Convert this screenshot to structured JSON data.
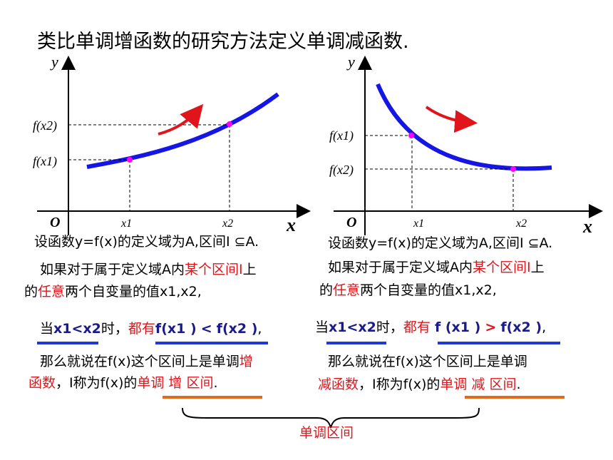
{
  "title": "类比单调增函数的研究方法定义单调减函数.",
  "left_graph": {
    "y_axis": "y",
    "x_axis": "x",
    "origin": "O",
    "x1": "x1",
    "x2": "x2",
    "fx1": "f(x1)",
    "fx2": "f(x2)"
  },
  "right_graph": {
    "y_axis": "y",
    "x_axis": "x",
    "origin": "O",
    "x1": "x1",
    "x2": "x2",
    "fx1": "f(x1)",
    "fx2": "f(x2)"
  },
  "left_text": {
    "line1": "设函数y=f(x)的定义域为A,区间I ⊆A.",
    "line2_a": "如果对于属于定义域A内",
    "line2_b": "某个区间I",
    "line2_c": "上",
    "line3_a": "的",
    "line3_b": "任意",
    "line3_c": "两个自变量的值x1,x2,",
    "line4_a": "当",
    "line4_cond": "x1<x2",
    "line4_b": "时，",
    "line4_c": "都有",
    "line4_ineq_l": "f(x1 )",
    "line4_op": "<",
    "line4_ineq_r": "f(x2 )",
    "line4_end": ",",
    "line5_a": "那么就说在f(x)这个区间上是单调",
    "line5_b": "增",
    "line6_a": "函数",
    "line6_b": "，I称为f(x)的",
    "line6_c": "单调 增 区间",
    "line6_d": "."
  },
  "right_text": {
    "line1": "设函数y=f(x)的定义域为A,区间I ⊆A.",
    "line2_a": "如果对于属于定义域A内",
    "line2_b": "某个区间I",
    "line2_c": "上",
    "line3_a": "的",
    "line3_b": "任意",
    "line3_c": "两个自变量的值x1,x2,",
    "line4_a": "当",
    "line4_cond": "x1<x2",
    "line4_b": "时，",
    "line4_c": "都有",
    "line4_ineq_l": "f (x1 )",
    "line4_op": ">",
    "line4_ineq_r": "f(x2 )",
    "line4_end": ",",
    "line5": "那么就说在f(x)这个区间上是单调",
    "line6_a": "减函数",
    "line6_b": "，I称为f(x)的",
    "line6_c": "单调 减 区间",
    "line6_d": "."
  },
  "brace_label": "单调区间",
  "colors": {
    "curve": "#1515e6",
    "arrow": "#e0151b",
    "point": "#ff00ff",
    "underline_blue": "#1f39d6",
    "underline_orange": "#e06b1a"
  }
}
